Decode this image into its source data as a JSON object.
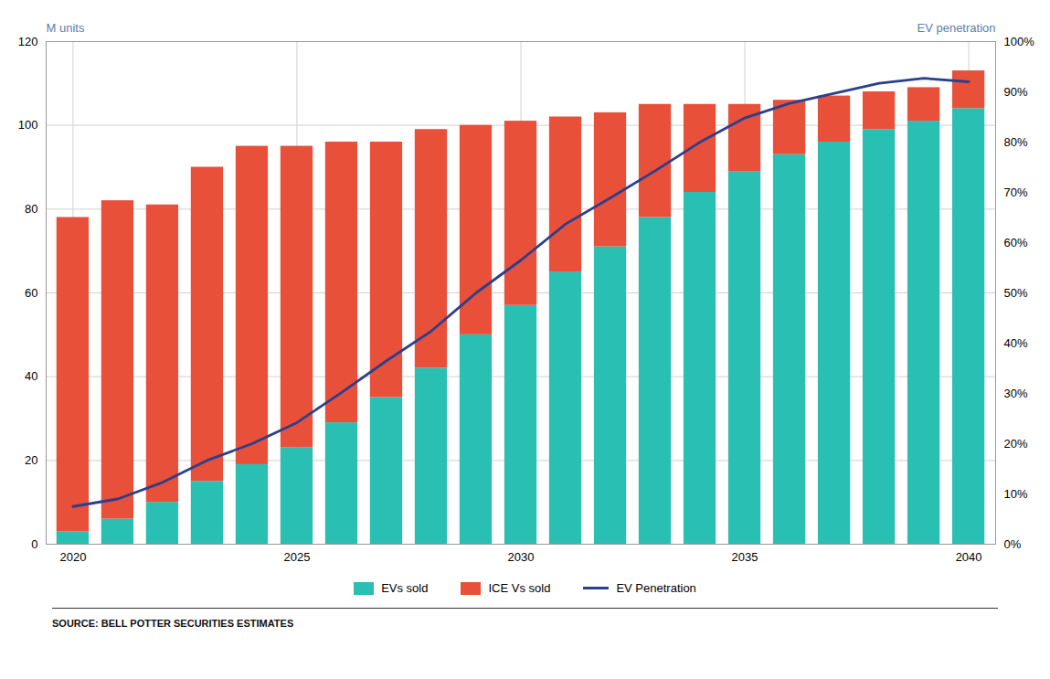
{
  "chart_data": {
    "type": "bar",
    "stacked": true,
    "x": [
      2020,
      2021,
      2022,
      2023,
      2024,
      2025,
      2026,
      2027,
      2028,
      2029,
      2030,
      2031,
      2032,
      2033,
      2034,
      2035,
      2036,
      2037,
      2038,
      2039,
      2040
    ],
    "xlim": [
      2019.4,
      2040.6
    ],
    "xticks": [
      2020,
      2025,
      2030,
      2035,
      2040
    ],
    "ylim": [
      0,
      120
    ],
    "yticks": [
      0,
      20,
      40,
      60,
      80,
      100,
      120
    ],
    "y2lim": [
      0,
      1.0
    ],
    "y2ticks": [
      {
        "value": 0.0,
        "label": "0%"
      },
      {
        "value": 0.1,
        "label": "10%"
      },
      {
        "value": 0.2,
        "label": "20%"
      },
      {
        "value": 0.3,
        "label": "30%"
      },
      {
        "value": 0.4,
        "label": "40%"
      },
      {
        "value": 0.5,
        "label": "50%"
      },
      {
        "value": 0.6,
        "label": "60%"
      },
      {
        "value": 0.7,
        "label": "70%"
      },
      {
        "value": 0.8,
        "label": "80%"
      },
      {
        "value": 0.9,
        "label": "90%"
      },
      {
        "value": 1.0,
        "label": "100%"
      }
    ],
    "ylabel": "M units",
    "y2label": "EV penetration",
    "grid": true,
    "legend": "bottom",
    "caption": "SOURCE: BELL POTTER SECURITIES ESTIMATES",
    "series": [
      {
        "name": "EVs sold",
        "type": "bar",
        "color": "#2ABFB3",
        "values": [
          3,
          6,
          10,
          15,
          19,
          23,
          29,
          35,
          42,
          50,
          57,
          65,
          71,
          78,
          84,
          89,
          93,
          96,
          99,
          101,
          104
        ]
      },
      {
        "name": "ICE Vs sold",
        "type": "bar",
        "color": "#E8503A",
        "values": [
          75,
          76,
          71,
          75,
          76,
          72,
          67,
          61,
          57,
          50,
          44,
          37,
          32,
          27,
          21,
          16,
          13,
          11,
          9,
          8,
          9
        ]
      },
      {
        "name": "EV Penetration",
        "type": "line",
        "color": "#2B3F8C",
        "axis": "y2",
        "values": [
          0.075,
          0.09,
          0.123,
          0.167,
          0.2,
          0.242,
          0.302,
          0.365,
          0.424,
          0.5,
          0.565,
          0.637,
          0.689,
          0.743,
          0.8,
          0.848,
          0.877,
          0.897,
          0.917,
          0.927,
          0.92
        ]
      }
    ]
  }
}
